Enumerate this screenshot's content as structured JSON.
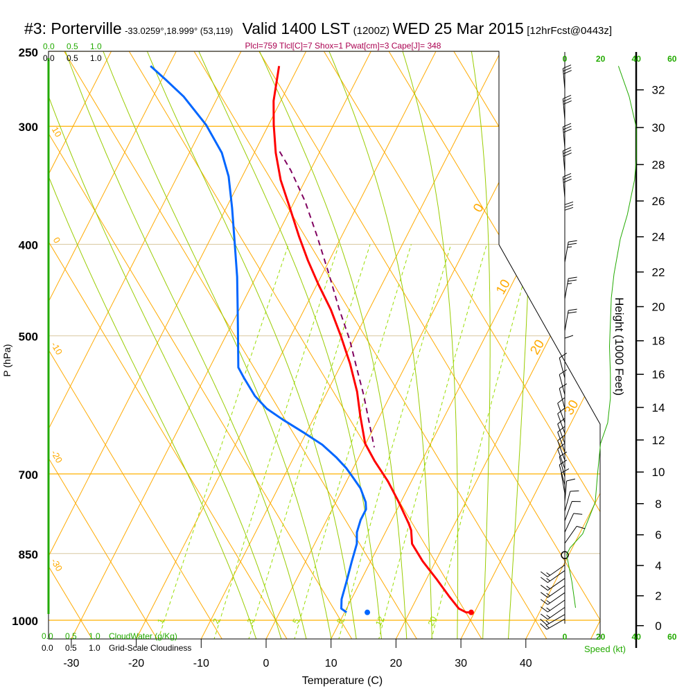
{
  "header": {
    "station": "#3: Porterville",
    "coords": "-33.0259°,18.999° (53,119)",
    "valid": "Valid 1400 LST",
    "utc": "(1200Z)",
    "date": "WED 25 Mar 2015",
    "forecast": "[12hrFcst@0443z]"
  },
  "indices": "Plcl=759 Tlcl[C]=7 Shox=1 Pwat[cm]=3 Cape[J]= 348",
  "colors": {
    "temperature": "#ff0000",
    "dewpoint": "#0066ff",
    "parcel": "#800060",
    "isotherm": "#ffaa00",
    "moist_adiabat": "#99cc00",
    "mixing_ratio": "#99dd00",
    "green_label": "#22aa00",
    "indices": "#aa0050"
  },
  "cloud": {
    "scale": [
      "0.0",
      "0.5",
      "1.0"
    ],
    "cloudwater_label": "CloudWater (g/Kg)",
    "cloudiness_label": "Grid-Scale Cloudiness"
  },
  "chart_data": {
    "type": "line",
    "title": "Skew-T log-P sounding",
    "xlabel": "Temperature (C)",
    "ylabel": "P (hPa)",
    "pressure_ticks": [
      "250",
      "300",
      "400",
      "500",
      "700",
      "850",
      "1000"
    ],
    "temp_ticks": [
      "-30",
      "-20",
      "-10",
      "0",
      "10",
      "20",
      "30",
      "40"
    ],
    "ylim": [
      1047,
      250
    ],
    "isotherm_labels": [
      "0",
      "10",
      "20",
      "30"
    ],
    "dry_adiabat_labels": [
      "10",
      "0",
      "-10",
      "-20",
      "-30"
    ],
    "mixing_ratio_labels": [
      "1",
      "2",
      "3",
      "5",
      "8",
      "12",
      "20"
    ],
    "series": [
      {
        "name": "Temperature",
        "points": [
          [
            259,
            -43.0
          ],
          [
            282,
            -41.1
          ],
          [
            299,
            -39.2
          ],
          [
            320,
            -36.7
          ],
          [
            342,
            -33.8
          ],
          [
            366,
            -30.2
          ],
          [
            392,
            -26.6
          ],
          [
            416,
            -23.3
          ],
          [
            441,
            -19.8
          ],
          [
            469,
            -15.9
          ],
          [
            500,
            -12.3
          ],
          [
            535,
            -8.7
          ],
          [
            573,
            -5.4
          ],
          [
            608,
            -3.0
          ],
          [
            650,
            -0.1
          ],
          [
            678,
            2.7
          ],
          [
            713,
            6.4
          ],
          [
            750,
            9.7
          ],
          [
            790,
            12.9
          ],
          [
            803,
            13.8
          ],
          [
            830,
            15.0
          ],
          [
            866,
            18.0
          ],
          [
            904,
            21.5
          ],
          [
            943,
            24.8
          ],
          [
            972,
            27.3
          ],
          [
            981,
            28.7
          ],
          [
            981,
            29.5
          ]
        ]
      },
      {
        "name": "Dewpoint",
        "points": [
          [
            259,
            -62.8
          ],
          [
            268,
            -59.3
          ],
          [
            279,
            -55.3
          ],
          [
            299,
            -49.6
          ],
          [
            320,
            -45.0
          ],
          [
            339,
            -42.1
          ],
          [
            366,
            -39.1
          ],
          [
            398,
            -36.0
          ],
          [
            433,
            -32.9
          ],
          [
            471,
            -30.1
          ],
          [
            496,
            -28.4
          ],
          [
            540,
            -25.6
          ],
          [
            554,
            -23.9
          ],
          [
            579,
            -20.8
          ],
          [
            597,
            -18.0
          ],
          [
            613,
            -14.7
          ],
          [
            634,
            -10.2
          ],
          [
            652,
            -6.6
          ],
          [
            672,
            -3.5
          ],
          [
            690,
            -1.1
          ],
          [
            707,
            0.8
          ],
          [
            725,
            2.7
          ],
          [
            750,
            4.6
          ],
          [
            763,
            5.2
          ],
          [
            783,
            5.2
          ],
          [
            807,
            5.6
          ],
          [
            830,
            6.5
          ],
          [
            866,
            7.1
          ],
          [
            911,
            7.9
          ],
          [
            950,
            8.5
          ],
          [
            972,
            9.2
          ],
          [
            981,
            10.3
          ]
        ]
      },
      {
        "name": "Parcel",
        "points": [
          [
            319,
            -36.2
          ],
          [
            334,
            -33.0
          ],
          [
            360,
            -28.4
          ],
          [
            392,
            -23.8
          ],
          [
            430,
            -19.0
          ],
          [
            468,
            -14.7
          ],
          [
            505,
            -10.6
          ],
          [
            540,
            -7.4
          ],
          [
            578,
            -4.1
          ],
          [
            618,
            -1.1
          ],
          [
            656,
            1.6
          ]
        ]
      }
    ],
    "surface_markers": {
      "temperature": {
        "p": 981,
        "t": 29.5
      },
      "dewpoint": {
        "p": 981,
        "t": 13.5
      }
    },
    "winds": [
      {
        "p": 274,
        "dir": 355,
        "kt": 30
      },
      {
        "p": 295,
        "dir": 355,
        "kt": 30
      },
      {
        "p": 316,
        "dir": 355,
        "kt": 30
      },
      {
        "p": 335,
        "dir": 355,
        "kt": 30
      },
      {
        "p": 357,
        "dir": 355,
        "kt": 30
      },
      {
        "p": 382,
        "dir": 0,
        "kt": 30
      },
      {
        "p": 418,
        "dir": 10,
        "kt": 25
      },
      {
        "p": 457,
        "dir": 10,
        "kt": 25
      },
      {
        "p": 494,
        "dir": 10,
        "kt": 20
      },
      {
        "p": 529,
        "dir": 0,
        "kt": 10
      },
      {
        "p": 554,
        "dir": 345,
        "kt": 10
      },
      {
        "p": 577,
        "dir": 345,
        "kt": 10
      },
      {
        "p": 597,
        "dir": 345,
        "kt": 10
      },
      {
        "p": 618,
        "dir": 340,
        "kt": 10
      },
      {
        "p": 634,
        "dir": 340,
        "kt": 10
      },
      {
        "p": 650,
        "dir": 340,
        "kt": 10
      },
      {
        "p": 663,
        "dir": 340,
        "kt": 10
      },
      {
        "p": 677,
        "dir": 340,
        "kt": 10
      },
      {
        "p": 691,
        "dir": 340,
        "kt": 10
      },
      {
        "p": 705,
        "dir": 345,
        "kt": 10
      },
      {
        "p": 719,
        "dir": 345,
        "kt": 10
      },
      {
        "p": 734,
        "dir": 350,
        "kt": 10
      },
      {
        "p": 749,
        "dir": 5,
        "kt": 10
      },
      {
        "p": 767,
        "dir": 15,
        "kt": 10
      },
      {
        "p": 785,
        "dir": 20,
        "kt": 10
      },
      {
        "p": 807,
        "dir": 25,
        "kt": 10
      },
      {
        "p": 829,
        "dir": 35,
        "kt": 10
      },
      {
        "p": 874,
        "dir": 235,
        "kt": 15
      },
      {
        "p": 886,
        "dir": 235,
        "kt": 15
      },
      {
        "p": 903,
        "dir": 235,
        "kt": 15
      },
      {
        "p": 919,
        "dir": 235,
        "kt": 15
      },
      {
        "p": 935,
        "dir": 235,
        "kt": 15
      },
      {
        "p": 952,
        "dir": 235,
        "kt": 15
      },
      {
        "p": 969,
        "dir": 235,
        "kt": 15
      },
      {
        "p": 986,
        "dir": 240,
        "kt": 15
      },
      {
        "p": 997,
        "dir": 240,
        "kt": 15
      }
    ],
    "speed_profile": {
      "label": "Speed (kt)",
      "ticks": [
        "0",
        "20",
        "40",
        "60"
      ],
      "points": [
        [
          259,
          30
        ],
        [
          279,
          36
        ],
        [
          301,
          40
        ],
        [
          325,
          40
        ],
        [
          342,
          39
        ],
        [
          372,
          35
        ],
        [
          395,
          31
        ],
        [
          430,
          27.5
        ],
        [
          456,
          26
        ],
        [
          513,
          25
        ],
        [
          549,
          25.5
        ],
        [
          582,
          25.5
        ],
        [
          618,
          24
        ],
        [
          650,
          20
        ],
        [
          695,
          18.5
        ],
        [
          750,
          17
        ],
        [
          810,
          10
        ],
        [
          838,
          3
        ],
        [
          852,
          1
        ],
        [
          911,
          4
        ],
        [
          970,
          6
        ]
      ]
    },
    "height_axis": {
      "label": "Height (1000 Feet)",
      "ticks": [
        "0",
        "2",
        "4",
        "6",
        "8",
        "10",
        "12",
        "14",
        "16",
        "18",
        "20",
        "22",
        "24",
        "26",
        "28",
        "30",
        "32"
      ]
    }
  }
}
